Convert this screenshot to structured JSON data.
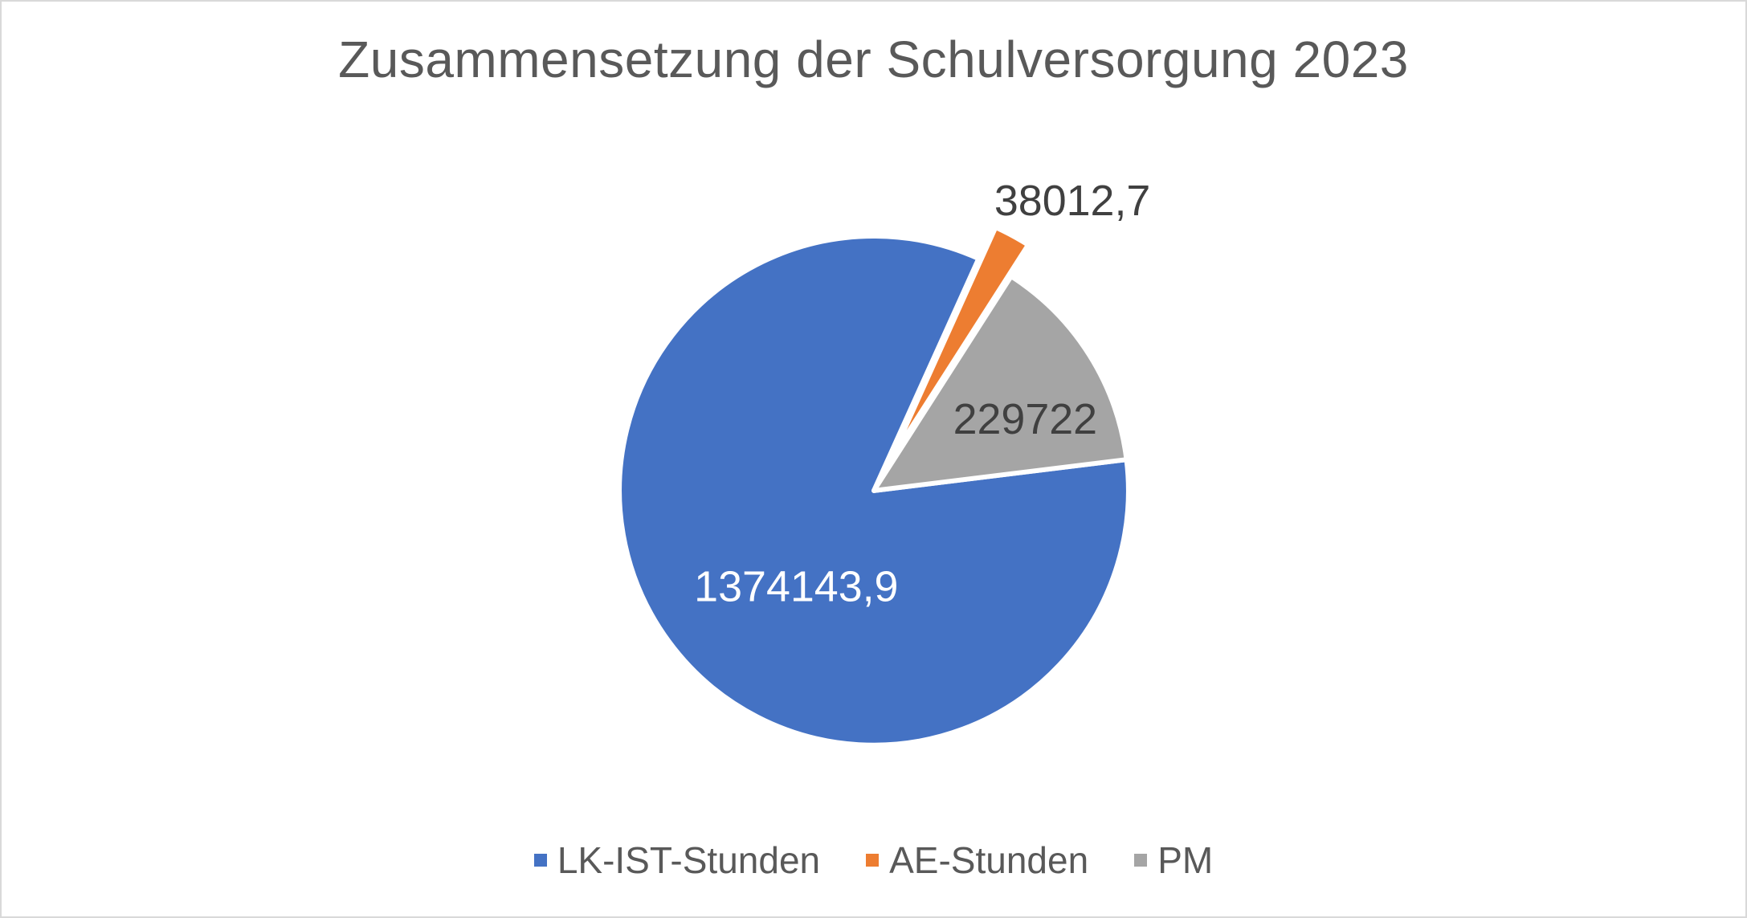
{
  "chart_data": {
    "type": "pie",
    "title": "Zusammensetzung der Schulversorgung 2023",
    "categories": [
      "LK-IST-Stunden",
      "AE-Stunden",
      "PM"
    ],
    "values": [
      1374143.9,
      38012.7,
      229722
    ],
    "data_labels": [
      "1374143,9",
      "38012,7",
      "229722"
    ],
    "slice_colors": [
      "#4472C4",
      "#ED7D31",
      "#A5A5A5"
    ],
    "data_label_colors": [
      "#FFFFFF",
      "#404040",
      "#404040"
    ],
    "data_label_placement": [
      "inside",
      "outside-top",
      "inside"
    ],
    "start_angle_deg": 83,
    "explode_fractions": [
      0,
      0.14,
      0
    ],
    "slice_border_color": "#FFFFFF",
    "legend_position": "bottom",
    "title_color": "#595959",
    "legend_text_color": "#595959"
  }
}
